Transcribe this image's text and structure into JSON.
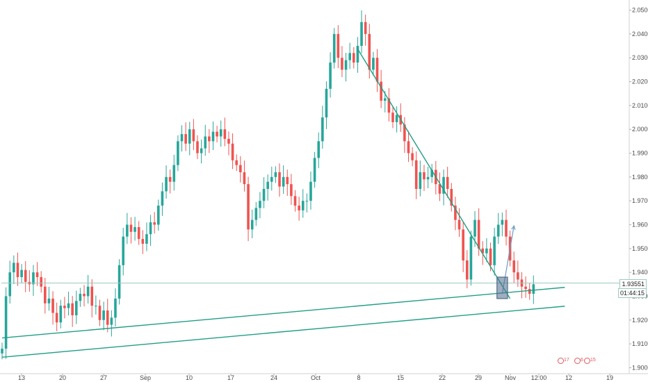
{
  "chart_data": {
    "type": "candlestick",
    "title": "",
    "xlabel": "",
    "ylabel": "",
    "ylim": [
      1.8975,
      2.0525
    ],
    "y_ticks": [
      "2.05000",
      "2.04000",
      "2.03000",
      "2.02000",
      "2.01000",
      "2.00000",
      "1.99000",
      "1.98000",
      "1.97000",
      "1.96000",
      "1.95000",
      "1.94000",
      "1.93000",
      "1.92000",
      "1.91000",
      "1.90000"
    ],
    "x_ticks": [
      "13",
      "20",
      "27",
      "Sep",
      "10",
      "17",
      "24",
      "Oct",
      "8",
      "15",
      "22",
      "29",
      "Nov",
      "12:00",
      "12",
      "19"
    ],
    "grid": false,
    "close_series": [
      1.908,
      1.93,
      1.94,
      1.944,
      1.938,
      1.941,
      1.936,
      1.935,
      1.94,
      1.938,
      1.934,
      1.927,
      1.929,
      1.923,
      1.919,
      1.926,
      1.925,
      1.927,
      1.922,
      1.928,
      1.931,
      1.93,
      1.934,
      1.926,
      1.926,
      1.92,
      1.924,
      1.918,
      1.921,
      1.929,
      1.943,
      1.955,
      1.96,
      1.957,
      1.959,
      1.954,
      1.952,
      1.956,
      1.961,
      1.96,
      1.968,
      1.974,
      1.98,
      1.978,
      1.985,
      1.995,
      1.998,
      1.994,
      2.0,
      1.995,
      1.99,
      1.992,
      1.997,
      1.995,
      1.999,
      1.997,
      2.0,
      1.996,
      1.994,
      1.987,
      1.985,
      1.982,
      1.977,
      1.958,
      1.962,
      1.967,
      1.97,
      1.975,
      1.978,
      1.98,
      1.982,
      1.976,
      1.98,
      1.977,
      1.972,
      1.968,
      1.966,
      1.97,
      1.97,
      1.978,
      1.988,
      1.995,
      2.005,
      2.017,
      2.028,
      2.04,
      2.03,
      2.025,
      2.029,
      2.032,
      2.028,
      2.035,
      2.045,
      2.04,
      2.025,
      2.03,
      2.02,
      2.012,
      2.013,
      2.007,
      2.003,
      2.006,
      2.002,
      1.995,
      1.99,
      1.987,
      1.975,
      1.982,
      1.979,
      1.98,
      1.983,
      1.977,
      1.973,
      1.98,
      1.975,
      1.968,
      1.962,
      1.958,
      1.945,
      1.937,
      1.955,
      1.962,
      1.95,
      1.948,
      1.95,
      1.943,
      1.955,
      1.96,
      1.962,
      1.955,
      1.945,
      1.94,
      1.937,
      1.934,
      1.933,
      1.931,
      1.935
    ],
    "horizontal_line": {
      "value": 1.93551,
      "label": "1.93551"
    },
    "countdown_label": "01:44:15",
    "drawings": [
      {
        "name": "rising-support-line-upper",
        "from": {
          "x_index": 0,
          "y": 1.9125
        },
        "to": {
          "x_index": 144,
          "y": 1.9337
        }
      },
      {
        "name": "rising-support-line-lower",
        "from": {
          "x_index": 0,
          "y": 1.9044
        },
        "to": {
          "x_index": 144,
          "y": 1.9258
        }
      },
      {
        "name": "descending-trendline",
        "from": {
          "x_index": 91,
          "y": 2.0337
        },
        "to": {
          "x_index": 130,
          "y": 1.929
        }
      },
      {
        "name": "projection-arrow",
        "from": {
          "x_index": 128,
          "y": 1.931
        },
        "to": {
          "x_index": 131,
          "y": 1.9595
        }
      }
    ],
    "highlight_box": {
      "name": "current-candle-box",
      "x_index_from": 127,
      "x_index_to": 129,
      "y_from": 1.929,
      "y_to": 1.938
    },
    "events": [
      {
        "name": "economic-event-icon",
        "count": "17"
      },
      {
        "name": "economic-event-icon",
        "count": "6"
      },
      {
        "name": "economic-event-icon",
        "count": "15"
      }
    ],
    "colors": {
      "up": "#26a69a",
      "down": "#ef5350",
      "trendline": "#1f9e84",
      "horizontal_line": "#9cc9bf",
      "highlight_box": "#4e6b8a",
      "arrow": "#6b9ac4",
      "event": "#e0565b"
    }
  }
}
